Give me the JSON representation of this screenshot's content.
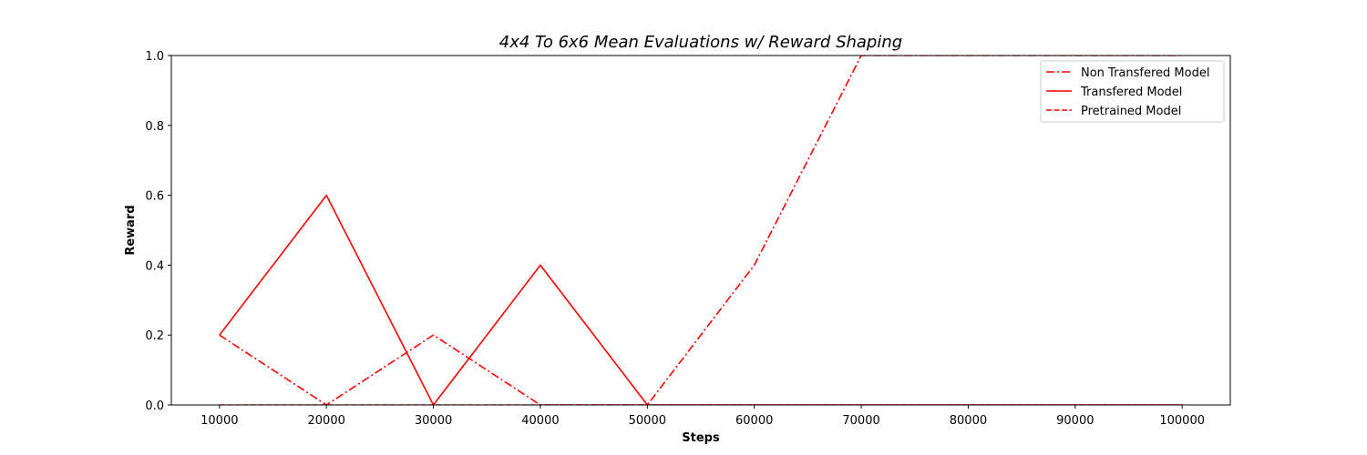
{
  "chart_data": {
    "type": "line",
    "title": "4x4 To 6x6 Mean Evaluations w/ Reward Shaping",
    "xlabel": "Steps",
    "ylabel": "Reward",
    "x": [
      10000,
      20000,
      30000,
      40000,
      50000,
      60000,
      70000,
      80000,
      90000,
      100000
    ],
    "xticks": [
      "10000",
      "20000",
      "30000",
      "40000",
      "50000",
      "60000",
      "70000",
      "80000",
      "90000",
      "100000"
    ],
    "yticks": [
      "0.0",
      "0.2",
      "0.4",
      "0.6",
      "0.8",
      "1.0"
    ],
    "ylim": [
      0,
      1
    ],
    "xlim": [
      5500,
      104500
    ],
    "grid": false,
    "legend_position": "top-right",
    "series": [
      {
        "name": "Non Transfered Model",
        "style": "dashdot",
        "color": "#ff0000",
        "values": [
          0.2,
          0.0,
          0.2,
          0.0,
          0.0,
          0.4,
          1.0,
          1.0,
          1.0,
          1.0
        ]
      },
      {
        "name": "Transfered Model",
        "style": "solid",
        "color": "#ff0000",
        "values": [
          0.2,
          0.6,
          0.0,
          0.4,
          0.0,
          0.0,
          0.0,
          0.0,
          0.0,
          0.0
        ]
      },
      {
        "name": "Pretrained Model",
        "style": "dashed",
        "color": "#ff0000",
        "values": [
          0.0,
          0.0,
          0.0,
          0.0,
          0.0,
          0.0,
          0.0,
          0.0,
          0.0,
          0.0
        ]
      }
    ]
  }
}
